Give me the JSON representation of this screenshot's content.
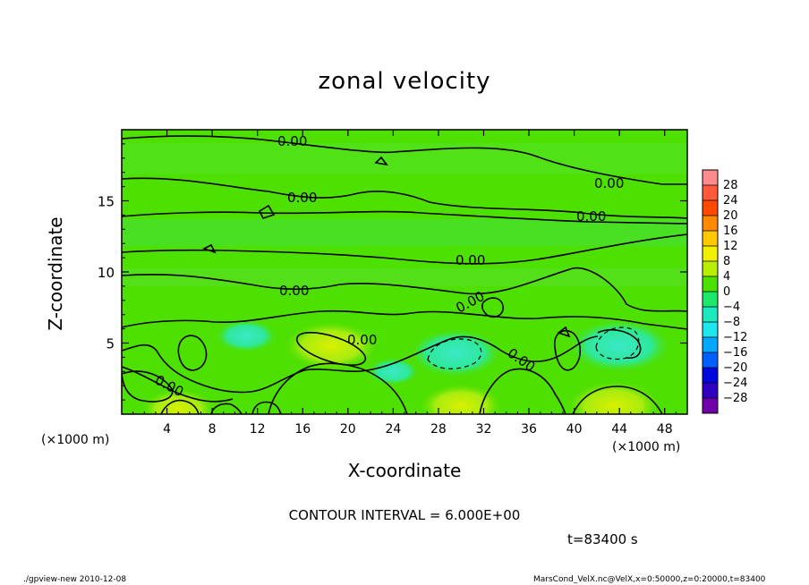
{
  "chart_data": {
    "type": "heatmap",
    "title": "zonal velocity",
    "xlabel": "X-coordinate",
    "ylabel": "Z-coordinate",
    "x_unit_label": "(×1000 m)",
    "xlim": [
      0,
      50
    ],
    "ylim": [
      0,
      20
    ],
    "x_ticks": [
      "4",
      "8",
      "12",
      "16",
      "20",
      "24",
      "28",
      "32",
      "36",
      "40",
      "44",
      "48"
    ],
    "y_ticks": [
      "5",
      "10",
      "15"
    ],
    "colorbar": {
      "labels": [
        "28",
        "24",
        "20",
        "16",
        "12",
        "8",
        "4",
        "0",
        "−4",
        "−8",
        "−12",
        "−16",
        "−20",
        "−24",
        "−28"
      ],
      "colors": [
        "#ff8c8c",
        "#ff5a3c",
        "#ff4a00",
        "#ff8a00",
        "#ffc800",
        "#f0f000",
        "#b8ee00",
        "#4ee000",
        "#1ee86c",
        "#1ee8c0",
        "#1ee8ee",
        "#00a8ff",
        "#0060ff",
        "#0008e0",
        "#3000c0",
        "#7000a8"
      ]
    },
    "contour_labels": [
      "0.00",
      "0.00",
      "0.00",
      "0.00",
      "0.00",
      "0.00",
      "0.00",
      "0.00",
      "0.00",
      "0.00"
    ],
    "contour_interval": "6.000E+00",
    "background_color": "#4ee000",
    "anomalies": [
      {
        "x": 18.5,
        "z": 4.8,
        "value": 6,
        "label": "positive"
      },
      {
        "x": 43.5,
        "z": 0.6,
        "value": 6,
        "label": "positive"
      },
      {
        "x": 30.0,
        "z": 0.6,
        "value": 5,
        "label": "positive"
      },
      {
        "x": 5.0,
        "z": 0.4,
        "value": 4,
        "label": "positive"
      },
      {
        "x": 29.5,
        "z": 4.3,
        "value": -6,
        "label": "negative"
      },
      {
        "x": 44.0,
        "z": 4.8,
        "value": -7,
        "label": "negative"
      },
      {
        "x": 11.0,
        "z": 5.5,
        "value": -3,
        "label": "negative"
      },
      {
        "x": 24.0,
        "z": 3.0,
        "value": -2,
        "label": "negative"
      }
    ]
  },
  "annotations": {
    "contour_interval_text": "CONTOUR INTERVAL = 6.000E+00",
    "time_text": "t=83400 s",
    "footer_left": "./gpview-new   2010-12-08",
    "footer_right": "MarsCond_VelX.nc@VelX,x=0:50000,z=0:20000,t=83400"
  }
}
